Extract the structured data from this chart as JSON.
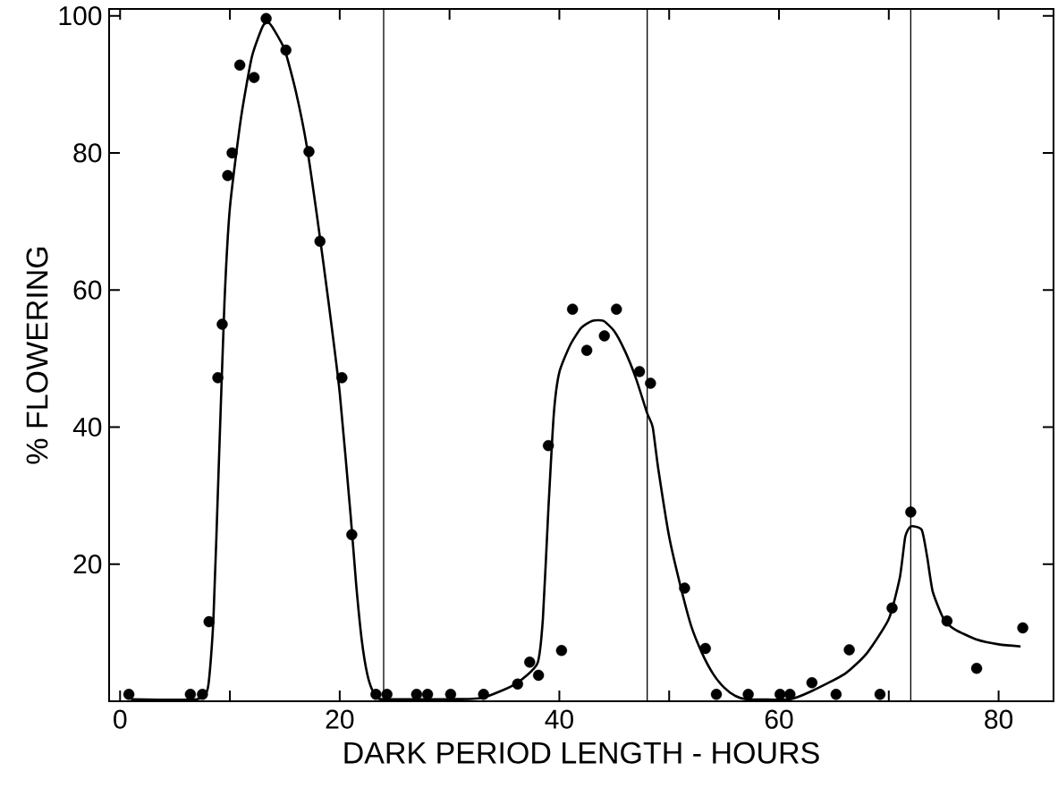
{
  "chart_data": {
    "type": "scatter",
    "xlabel": "DARK PERIOD LENGTH - HOURS",
    "ylabel": "% FLOWERING",
    "xlim": [
      -1,
      85
    ],
    "ylim": [
      0,
      101
    ],
    "xticks": [
      0,
      {
        "value": 10,
        "label": null
      },
      20,
      {
        "value": 30,
        "label": null
      },
      40,
      {
        "value": 50,
        "label": null
      },
      60,
      {
        "value": 70,
        "label": null
      },
      80
    ],
    "yticks": [
      {
        "value": 0,
        "label": null
      },
      20,
      40,
      60,
      80,
      100
    ],
    "ref_lines": [
      {
        "axis": "x",
        "value": 24,
        "color": "#000000"
      },
      {
        "axis": "x",
        "value": 48,
        "color": "#000000"
      },
      {
        "axis": "x",
        "value": 72,
        "color": "#000000"
      }
    ],
    "series": [
      {
        "type": "line",
        "color": "#000000",
        "line_style": "solid",
        "marker": "none",
        "x": [
          1,
          7,
          8,
          8.5,
          9,
          9.5,
          10,
          11,
          12,
          13,
          13.5,
          14,
          15,
          16,
          17,
          18,
          19,
          20,
          21,
          21.5,
          22,
          22.5,
          23,
          23.5,
          24,
          30,
          33,
          36,
          38,
          38.5,
          39,
          39.5,
          40,
          41,
          42,
          43,
          44,
          45,
          46,
          47,
          48,
          48.5,
          49,
          50,
          51,
          52,
          53,
          54,
          55,
          56,
          57,
          61,
          63,
          66,
          68,
          70,
          71,
          71.5,
          72,
          73,
          73.5,
          74,
          75,
          76,
          78,
          80,
          82
        ],
        "values": [
          0.3,
          0.3,
          2,
          12,
          35,
          58,
          72,
          85,
          94,
          98.5,
          99,
          98,
          95,
          89,
          81,
          70,
          58,
          45,
          27,
          17,
          9,
          4,
          1.5,
          0.5,
          0.3,
          0.3,
          0.5,
          2.5,
          5.5,
          12,
          28,
          42,
          48,
          52,
          54.5,
          55.5,
          55.5,
          54,
          51,
          47,
          42,
          40,
          34,
          24,
          17,
          11,
          7,
          4,
          2,
          0.8,
          0.3,
          0.3,
          1.5,
          4,
          7,
          12,
          18,
          24,
          25.5,
          25,
          21,
          16,
          12,
          10.5,
          9,
          8.3,
          8
        ]
      },
      {
        "color": "#000000",
        "marker": "circle",
        "x": [
          0.8,
          6.4,
          7.5,
          8.1,
          8.9,
          9.3,
          9.8,
          10.2,
          10.9,
          12.2,
          13.3,
          15.1,
          17.2,
          18.2,
          20.2,
          21.1,
          23.3,
          24.3,
          27.0,
          28.0,
          30.1,
          33.1,
          36.2,
          37.3,
          38.1,
          39.0,
          40.2,
          41.2,
          42.5,
          44.1,
          45.2,
          47.3,
          48.3,
          51.4,
          53.3,
          54.3,
          57.2,
          60.1,
          61.0,
          63.0,
          65.2,
          66.4,
          69.2,
          70.3,
          72.0,
          75.3,
          78.0,
          82.2
        ],
        "values": [
          1,
          1,
          1,
          11.6,
          47.2,
          55,
          76.7,
          80,
          92.8,
          91,
          99.6,
          95,
          80.2,
          67.1,
          47.2,
          24.3,
          1,
          1,
          1,
          1,
          1,
          1,
          2.5,
          5.7,
          3.8,
          37.3,
          7.4,
          57.2,
          51.2,
          53.3,
          57.2,
          48.1,
          46.4,
          16.5,
          7.7,
          1,
          1,
          1,
          1,
          2.7,
          1,
          7.5,
          1,
          13.6,
          27.6,
          11.7,
          4.8,
          10.7
        ]
      }
    ]
  }
}
